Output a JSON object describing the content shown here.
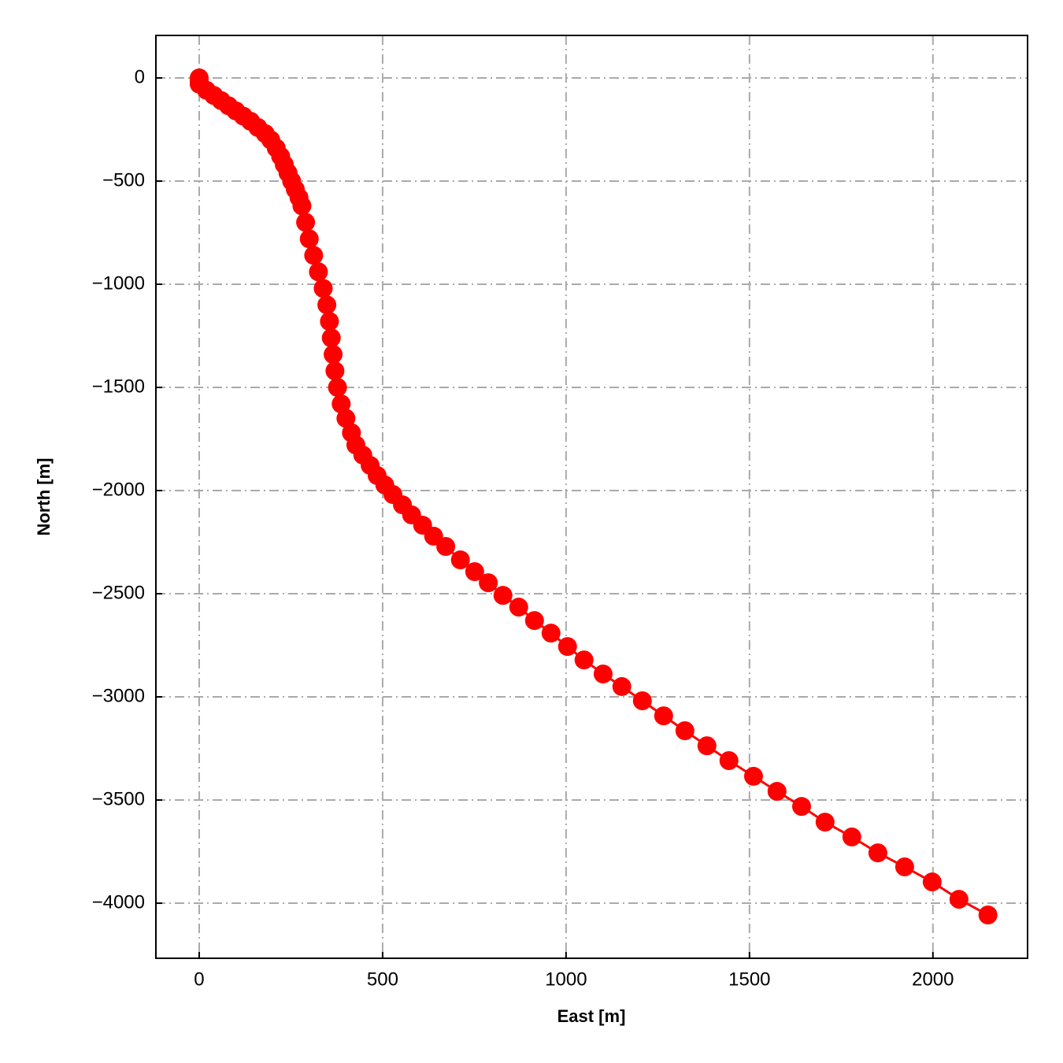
{
  "chart_data": {
    "type": "line",
    "markers": true,
    "color": "#ff0000",
    "xlabel": "East [m]",
    "ylabel": "North [m]",
    "x": [
      0,
      0,
      0,
      20,
      40,
      60,
      80,
      100,
      120,
      140,
      160,
      180,
      195,
      210,
      222,
      232,
      242,
      252,
      262,
      272,
      280,
      290,
      300,
      312,
      325,
      338,
      348,
      355,
      360,
      365,
      370,
      377,
      387,
      400,
      415,
      427,
      446,
      466,
      485,
      506,
      528,
      554,
      579,
      609,
      639,
      672,
      712,
      751,
      788,
      828,
      871,
      914,
      959,
      1004,
      1049,
      1101,
      1152,
      1208,
      1266,
      1324,
      1384,
      1444,
      1511,
      1575,
      1642,
      1706,
      1779,
      1850,
      1923,
      1998,
      2071,
      2150
    ],
    "values": [
      0,
      -15,
      -30,
      -60,
      -85,
      -110,
      -135,
      -160,
      -185,
      -210,
      -240,
      -270,
      -300,
      -340,
      -380,
      -420,
      -460,
      -500,
      -540,
      -580,
      -620,
      -700,
      -780,
      -860,
      -940,
      -1020,
      -1100,
      -1180,
      -1260,
      -1340,
      -1420,
      -1500,
      -1580,
      -1650,
      -1720,
      -1779,
      -1828,
      -1878,
      -1927,
      -1973,
      -2019,
      -2069,
      -2118,
      -2168,
      -2221,
      -2271,
      -2336,
      -2393,
      -2447,
      -2508,
      -2565,
      -2630,
      -2691,
      -2756,
      -2821,
      -2889,
      -2950,
      -3019,
      -3092,
      -3164,
      -3237,
      -3309,
      -3385,
      -3458,
      -3531,
      -3607,
      -3679,
      -3756,
      -3824,
      -3897,
      -3981,
      -4057
    ],
    "xlim": [
      -118,
      2258
    ],
    "xticks": [
      0,
      500,
      1000,
      1500,
      2000
    ],
    "ylim": [
      -4267,
      206
    ],
    "yticks": [
      0,
      {
        "value": -500,
        "label": "−500"
      },
      {
        "value": -1000,
        "label": "−1000"
      },
      {
        "value": -1500,
        "label": "−1500"
      },
      {
        "value": -2000,
        "label": "−2000"
      },
      {
        "value": -2500,
        "label": "−2500"
      },
      {
        "value": -3000,
        "label": "−3000"
      },
      {
        "value": -3500,
        "label": "−3500"
      },
      {
        "value": -4000,
        "label": "−4000"
      }
    ],
    "grid": true
  }
}
